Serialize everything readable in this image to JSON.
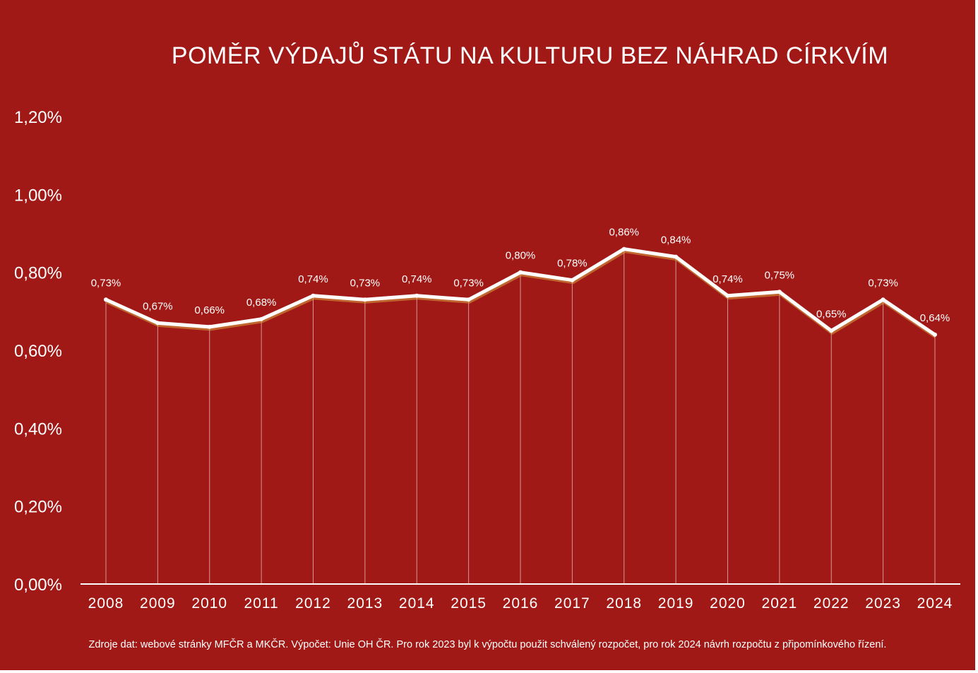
{
  "colors": {
    "background": "#a01916",
    "line": "#ffffff",
    "shadow": "#d9a441"
  },
  "chart_data": {
    "type": "line",
    "title": "POMĚR VÝDAJŮ STÁTU NA KULTURU BEZ NÁHRAD CÍRKVÍM",
    "xlabel": "",
    "ylabel": "",
    "ylim": [
      0,
      1.2
    ],
    "yticks": [
      0,
      0.2,
      0.4,
      0.6,
      0.8,
      1.0,
      1.2
    ],
    "ytick_labels": [
      "0,00%",
      "0,20%",
      "0,40%",
      "0,60%",
      "0,80%",
      "1,00%",
      "1,20%"
    ],
    "categories": [
      "2008",
      "2009",
      "2010",
      "2011",
      "2012",
      "2013",
      "2014",
      "2015",
      "2016",
      "2017",
      "2018",
      "2019",
      "2020",
      "2021",
      "2022",
      "2023",
      "2024"
    ],
    "series": [
      {
        "values": [
          0.73,
          0.67,
          0.66,
          0.68,
          0.74,
          0.73,
          0.74,
          0.73,
          0.8,
          0.78,
          0.86,
          0.84,
          0.74,
          0.75,
          0.65,
          0.73,
          0.64
        ],
        "labels": [
          "0,73%",
          "0,67%",
          "0,66%",
          "0,68%",
          "0,74%",
          "0,73%",
          "0,74%",
          "0,73%",
          "0,80%",
          "0,78%",
          "0,86%",
          "0,84%",
          "0,74%",
          "0,75%",
          "0,65%",
          "0,73%",
          "0,64%"
        ]
      }
    ],
    "grid": false,
    "legend": "none",
    "source_note": "Zdroje dat: webové stránky MFČR a MKČR. Výpočet: Unie OH ČR. Pro rok 2023 byl k výpočtu použit schválený rozpočet, pro rok 2024 návrh rozpočtu z připomínkového řízení."
  }
}
